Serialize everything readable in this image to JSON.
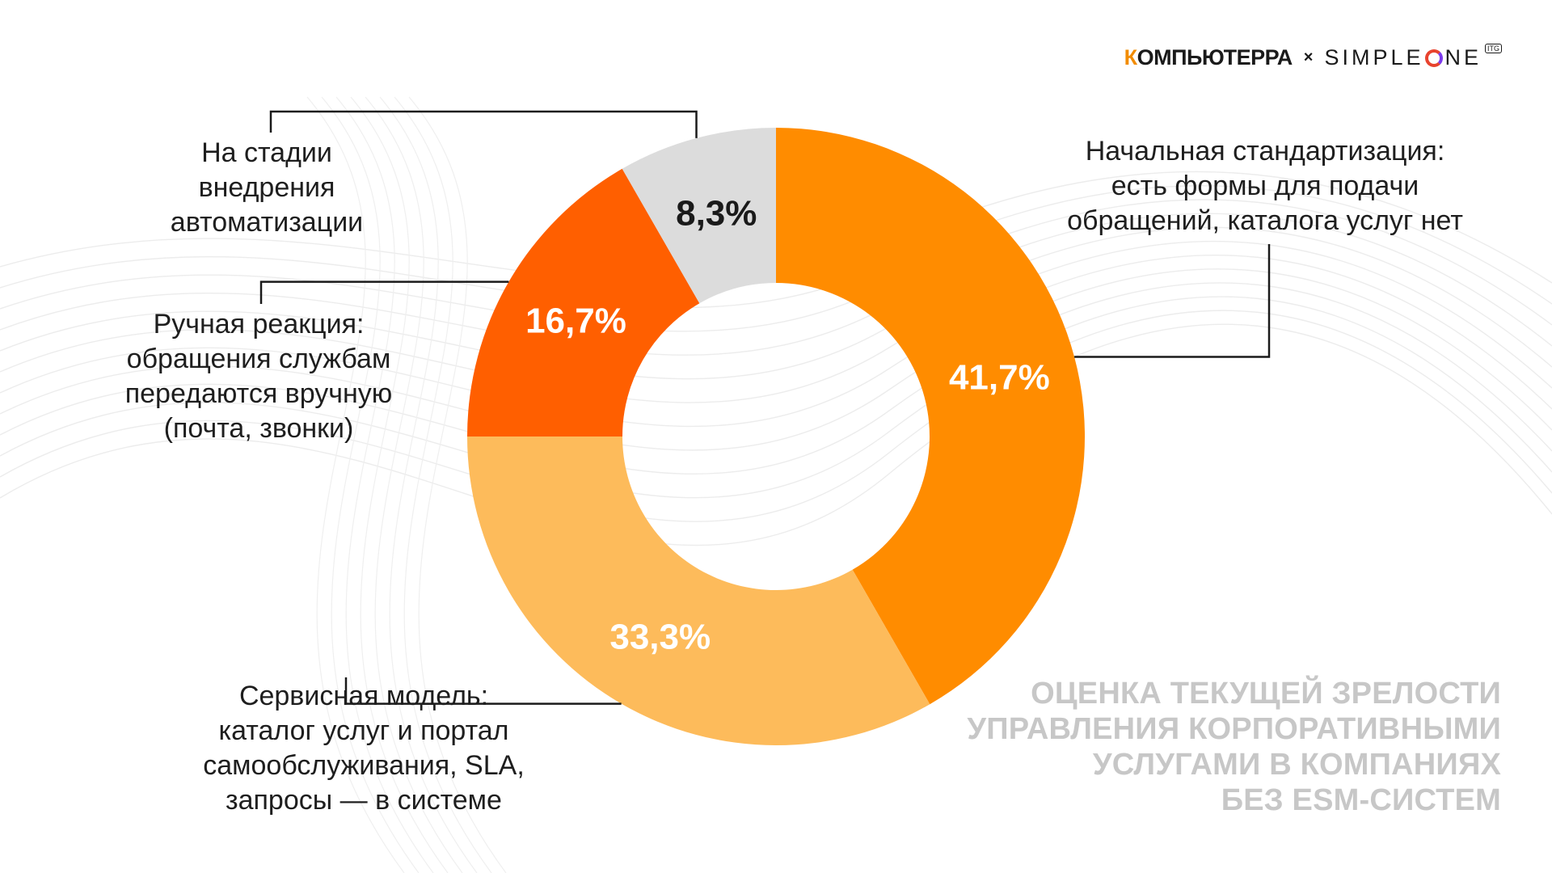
{
  "brand": {
    "left_first": "К",
    "left_rest": "ОМПЬЮТЕРРА",
    "separator": "×",
    "right_a": "SIMPLE",
    "right_b": "NE",
    "right_badge": "ITG"
  },
  "title_lines": [
    "ОЦЕНКА ТЕКУЩЕЙ ЗРЕЛОСТИ",
    "УПРАВЛЕНИЯ КОРПОРАТИВНЫМИ",
    "УСЛУГАМИ В КОМПАНИЯХ",
    "БЕЗ ESM-СИСТЕМ"
  ],
  "chart_data": {
    "type": "pie",
    "donut": true,
    "start": "top",
    "direction": "clockwise",
    "slices": [
      {
        "label_lines": [
          "Начальная стандартизация:",
          "есть формы для подачи",
          "обращений, каталога услуг нет"
        ],
        "value": 41.7,
        "value_label": "41,7%",
        "color": "#ff8c00",
        "text_color": "#ffffff"
      },
      {
        "label_lines": [
          "Сервисная модель:",
          "каталог услуг и портал",
          "самообслуживания, SLA,",
          "запросы — в системе"
        ],
        "value": 33.3,
        "value_label": "33,3%",
        "color": "#fdbb5b",
        "text_color": "#ffffff"
      },
      {
        "label_lines": [
          "Ручная реакция:",
          "обращения службам",
          "передаются вручную",
          "(почта, звонки)"
        ],
        "value": 16.7,
        "value_label": "16,7%",
        "color": "#ff5f00",
        "text_color": "#ffffff"
      },
      {
        "label_lines": [
          "На стадии",
          "внедрения",
          "автоматизации"
        ],
        "value": 8.3,
        "value_label": "8,3%",
        "color": "#dcdcdc",
        "text_color": "#1a1a1a"
      }
    ]
  }
}
